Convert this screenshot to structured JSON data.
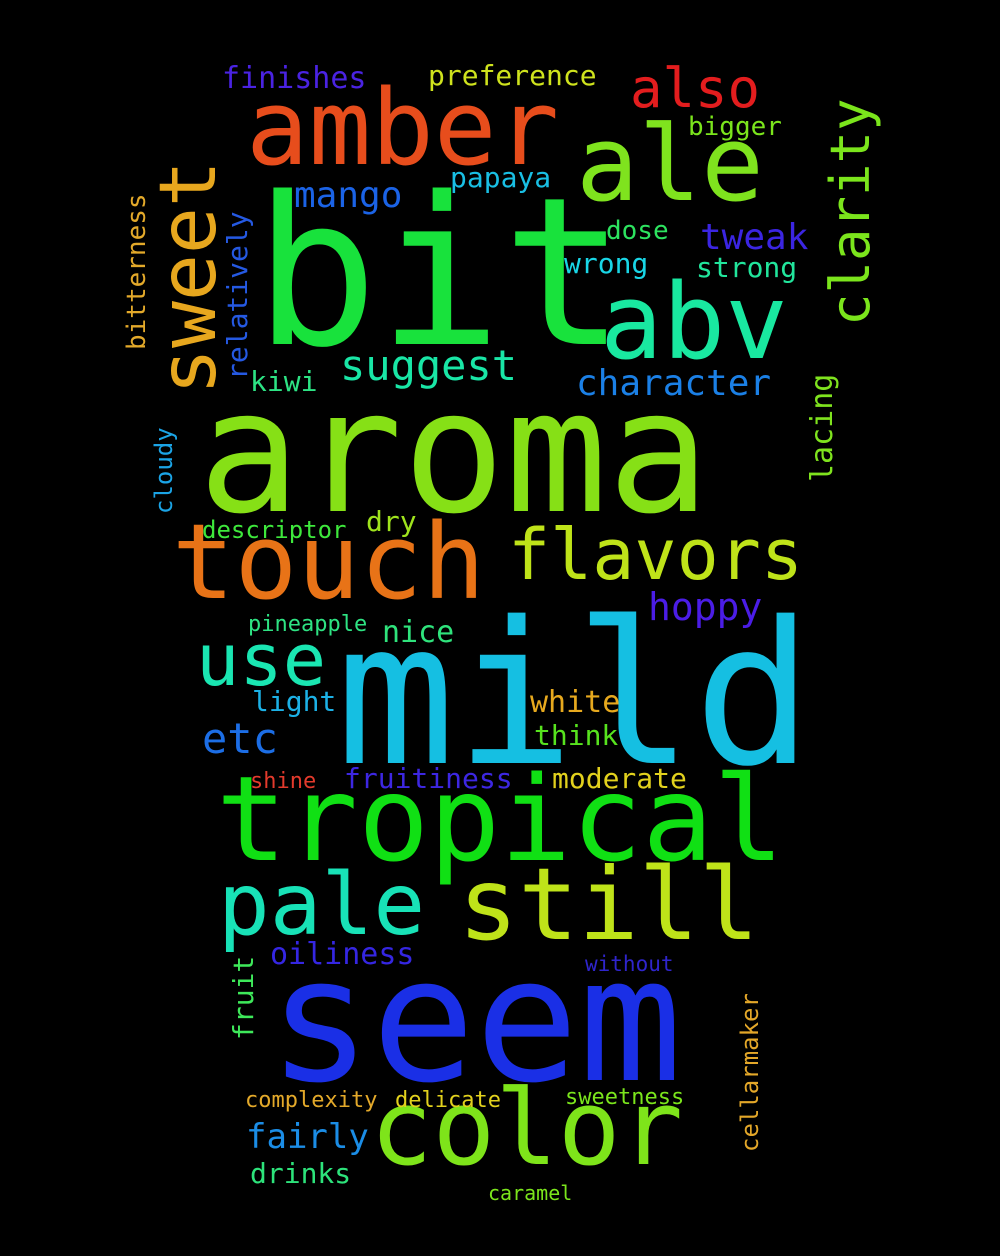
{
  "word_cloud": {
    "background": "#000000",
    "words": [
      {
        "text": "bit",
        "color": "#18e23c"
      },
      {
        "text": "aroma",
        "color": "#86e016"
      },
      {
        "text": "mild",
        "color": "#15bfe2"
      },
      {
        "text": "seem",
        "color": "#1a2fe6"
      },
      {
        "text": "tropical",
        "color": "#10e014"
      },
      {
        "text": "amber",
        "color": "#e74d1c"
      },
      {
        "text": "ale",
        "color": "#7fe31e"
      },
      {
        "text": "abv",
        "color": "#19e8a0"
      },
      {
        "text": "sweet",
        "color": "#e7a71e"
      },
      {
        "text": "touch",
        "color": "#e87317"
      },
      {
        "text": "color",
        "color": "#7ee41a"
      },
      {
        "text": "still",
        "color": "#bfe319"
      },
      {
        "text": "pale",
        "color": "#18e2b7"
      },
      {
        "text": "flavors",
        "color": "#bfe319"
      },
      {
        "text": "use",
        "color": "#1ae6b2"
      },
      {
        "text": "clarity",
        "color": "#7be51c"
      },
      {
        "text": "also",
        "color": "#e31d1e"
      },
      {
        "text": "suggest",
        "color": "#19e6a6"
      },
      {
        "text": "character",
        "color": "#1b80e6"
      },
      {
        "text": "hoppy",
        "color": "#4b1de6"
      },
      {
        "text": "mango",
        "color": "#1b63e6"
      },
      {
        "text": "tweak",
        "color": "#3b25e2"
      },
      {
        "text": "etc",
        "color": "#1c6ee6"
      },
      {
        "text": "finishes",
        "color": "#4a23e2"
      },
      {
        "text": "preference",
        "color": "#cfe31d"
      },
      {
        "text": "papaya",
        "color": "#19bfe4"
      },
      {
        "text": "bigger",
        "color": "#7be51c"
      },
      {
        "text": "dose",
        "color": "#2de35f"
      },
      {
        "text": "wrong",
        "color": "#19d6e6"
      },
      {
        "text": "strong",
        "color": "#21e59c"
      },
      {
        "text": "relatively",
        "color": "#2559e2"
      },
      {
        "text": "bitterness",
        "color": "#e3a92a"
      },
      {
        "text": "kiwi",
        "color": "#2de384"
      },
      {
        "text": "lacing",
        "color": "#7fe31e"
      },
      {
        "text": "cloudy",
        "color": "#1ba4e6"
      },
      {
        "text": "descriptor",
        "color": "#3ee83c"
      },
      {
        "text": "dry",
        "color": "#9fe31d"
      },
      {
        "text": "pineapple",
        "color": "#2ee383"
      },
      {
        "text": "nice",
        "color": "#2fe37c"
      },
      {
        "text": "light",
        "color": "#1cb1e6"
      },
      {
        "text": "white",
        "color": "#e7a91e"
      },
      {
        "text": "think",
        "color": "#57e31e"
      },
      {
        "text": "shine",
        "color": "#e33a2c"
      },
      {
        "text": "fruitiness",
        "color": "#3d27e2"
      },
      {
        "text": "moderate",
        "color": "#e2d11d"
      },
      {
        "text": "oiliness",
        "color": "#3526e2"
      },
      {
        "text": "without",
        "color": "#2f25cc"
      },
      {
        "text": "fruit",
        "color": "#3ee85a"
      },
      {
        "text": "cellarmaker",
        "color": "#e3a729"
      },
      {
        "text": "complexity",
        "color": "#e3a92a"
      },
      {
        "text": "delicate",
        "color": "#e2d11d"
      },
      {
        "text": "sweetness",
        "color": "#7be51c"
      },
      {
        "text": "fairly",
        "color": "#1b8de6"
      },
      {
        "text": "drinks",
        "color": "#2de37b"
      },
      {
        "text": "caramel",
        "color": "#7be51c"
      }
    ]
  }
}
